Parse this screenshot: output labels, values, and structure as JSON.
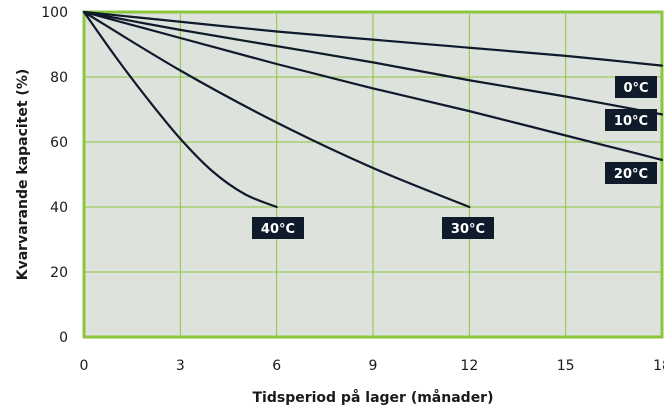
{
  "chart_data": {
    "type": "line",
    "title": "",
    "xlabel": "Tidsperiod på lager (månader)",
    "ylabel": "Kvarvarande kapacitet (%)",
    "xlim": [
      0,
      18
    ],
    "ylim": [
      0,
      100
    ],
    "xticks": [
      0,
      3,
      6,
      9,
      12,
      15,
      18
    ],
    "yticks": [
      0,
      20,
      40,
      60,
      80,
      100
    ],
    "grid": true,
    "colors": {
      "plot_background": "#dde2dc",
      "grid": "#8cc63f",
      "frame": "#8cc63f",
      "line": "#0f1a2b",
      "label_background": "#0f1a2b",
      "label_text": "#ffffff"
    },
    "series": [
      {
        "name": "0°C",
        "x": [
          0,
          3,
          6,
          9,
          12,
          15,
          18
        ],
        "y": [
          100,
          97,
          94,
          91.5,
          89,
          86.5,
          83.5
        ]
      },
      {
        "name": "10°C",
        "x": [
          0,
          3,
          6,
          9,
          12,
          15,
          18
        ],
        "y": [
          100,
          94.5,
          89.5,
          84.5,
          79,
          74,
          68.5
        ]
      },
      {
        "name": "20°C",
        "x": [
          0,
          3,
          6,
          9,
          12,
          15,
          18
        ],
        "y": [
          100,
          92,
          84,
          76.5,
          69.5,
          62,
          54.5
        ]
      },
      {
        "name": "30°C",
        "x": [
          0,
          3,
          6,
          9,
          12
        ],
        "y": [
          100,
          82,
          66,
          52,
          40
        ]
      },
      {
        "name": "40°C",
        "x": [
          0,
          1,
          2,
          3,
          4,
          5,
          6
        ],
        "y": [
          100,
          86,
          73,
          61,
          51,
          44,
          40
        ]
      }
    ]
  }
}
